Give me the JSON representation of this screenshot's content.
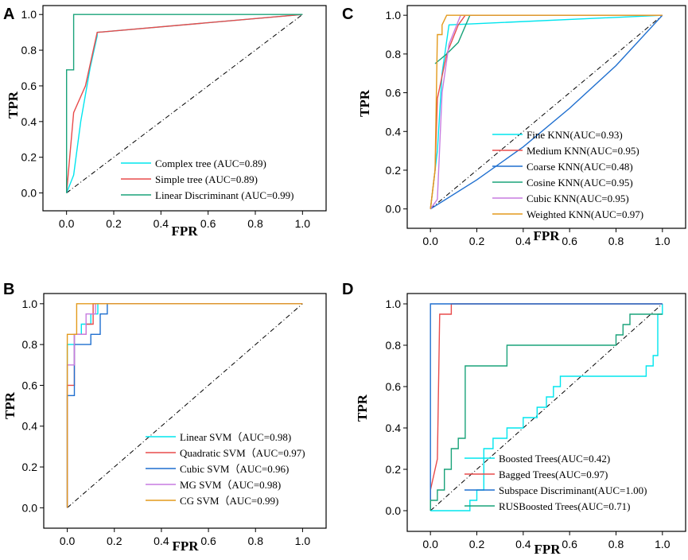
{
  "chart_data": [
    {
      "panel": "A",
      "type": "line",
      "xlabel": "FPR",
      "ylabel": "TPR",
      "xlim": [
        -0.1,
        1.1
      ],
      "ylim": [
        -0.1,
        1.05
      ],
      "xticks": [
        0.0,
        0.2,
        0.4,
        0.6,
        0.8,
        1.0
      ],
      "yticks": [
        0.0,
        0.2,
        0.4,
        0.6,
        0.8,
        1.0
      ],
      "xtick_labels": [
        "0.0",
        "0.2",
        "0.4",
        "0.6",
        "0.8",
        "1.0"
      ],
      "ytick_labels": [
        "0.0",
        "0.2",
        "0.4",
        "0.6",
        "0.8",
        "1.0"
      ],
      "legend_position": "bottom-right",
      "series": [
        {
          "name": "Complex tree (AUC=0.89)",
          "color": "#00e5ee",
          "points": [
            [
              0,
              0
            ],
            [
              0.03,
              0.1
            ],
            [
              0.06,
              0.4
            ],
            [
              0.1,
              0.7
            ],
            [
              0.13,
              0.88
            ],
            [
              0.13,
              0.9
            ],
            [
              1,
              1
            ]
          ]
        },
        {
          "name": "Simple tree (AUC=0.89)",
          "color": "#e84b4b",
          "points": [
            [
              0,
              0
            ],
            [
              0.03,
              0.45
            ],
            [
              0.08,
              0.6
            ],
            [
              0.13,
              0.9
            ],
            [
              1,
              1
            ]
          ]
        },
        {
          "name": "Linear Discriminant (AUC=0.99)",
          "color": "#1aa37a",
          "points": [
            [
              0,
              0
            ],
            [
              0,
              0.69
            ],
            [
              0.03,
              0.69
            ],
            [
              0.03,
              1
            ],
            [
              1,
              1
            ]
          ]
        }
      ]
    },
    {
      "panel": "B",
      "type": "line",
      "xlabel": "FPR",
      "ylabel": "TPR",
      "xlim": [
        -0.1,
        1.1
      ],
      "ylim": [
        -0.1,
        1.05
      ],
      "xticks": [
        0.0,
        0.2,
        0.4,
        0.6,
        0.8,
        1.0
      ],
      "yticks": [
        0.0,
        0.2,
        0.4,
        0.6,
        0.8,
        1.0
      ],
      "xtick_labels": [
        "0.0",
        "0.2",
        "0.4",
        "0.6",
        "0.8",
        "1.0"
      ],
      "ytick_labels": [
        "0.0",
        "0.2",
        "0.4",
        "0.6",
        "0.8",
        "1.0"
      ],
      "legend_position": "bottom-right",
      "series": [
        {
          "name": "Linear SVM（AUC=0.98)",
          "color": "#00e5ee",
          "points": [
            [
              0,
              0
            ],
            [
              0,
              0.8
            ],
            [
              0.03,
              0.8
            ],
            [
              0.03,
              0.85
            ],
            [
              0.06,
              0.85
            ],
            [
              0.06,
              0.9
            ],
            [
              0.1,
              0.9
            ],
            [
              0.1,
              0.95
            ],
            [
              0.13,
              0.95
            ],
            [
              0.13,
              1
            ],
            [
              1,
              1
            ]
          ]
        },
        {
          "name": "Quadratic SVM（AUC=0.97)",
          "color": "#e84b4b",
          "points": [
            [
              0,
              0
            ],
            [
              0,
              0.6
            ],
            [
              0.03,
              0.6
            ],
            [
              0.03,
              0.85
            ],
            [
              0.08,
              0.85
            ],
            [
              0.08,
              0.9
            ],
            [
              0.11,
              0.9
            ],
            [
              0.11,
              1
            ],
            [
              1,
              1
            ]
          ]
        },
        {
          "name": "Cubic SVM（AUC=0.96)",
          "color": "#1f6fcf",
          "points": [
            [
              0,
              0
            ],
            [
              0,
              0.55
            ],
            [
              0.03,
              0.55
            ],
            [
              0.03,
              0.8
            ],
            [
              0.1,
              0.8
            ],
            [
              0.1,
              0.85
            ],
            [
              0.14,
              0.85
            ],
            [
              0.14,
              0.95
            ],
            [
              0.17,
              0.95
            ],
            [
              0.17,
              1
            ],
            [
              1,
              1
            ]
          ]
        },
        {
          "name": "MG SVM（AUC=0.98)",
          "color": "#c77ce0",
          "points": [
            [
              0,
              0
            ],
            [
              0,
              0.7
            ],
            [
              0.03,
              0.7
            ],
            [
              0.03,
              0.85
            ],
            [
              0.08,
              0.85
            ],
            [
              0.08,
              0.95
            ],
            [
              0.12,
              0.95
            ],
            [
              0.12,
              1
            ],
            [
              1,
              1
            ]
          ]
        },
        {
          "name": "CG SVM（AUC=0.99)",
          "color": "#e39a1c",
          "points": [
            [
              0,
              0
            ],
            [
              0,
              0.85
            ],
            [
              0.04,
              0.85
            ],
            [
              0.04,
              1
            ],
            [
              1,
              1
            ]
          ]
        }
      ]
    },
    {
      "panel": "C",
      "type": "line",
      "xlabel": "FPR",
      "ylabel": "TPR",
      "xlim": [
        -0.1,
        1.1
      ],
      "ylim": [
        -0.1,
        1.05
      ],
      "xticks": [
        0.0,
        0.2,
        0.4,
        0.6,
        0.8,
        1.0
      ],
      "yticks": [
        0.0,
        0.2,
        0.4,
        0.6,
        0.8,
        1.0
      ],
      "xtick_labels": [
        "0.0",
        "0.2",
        "0.4",
        "0.6",
        "0.8",
        "1.0"
      ],
      "ytick_labels": [
        "0.0",
        "0.2",
        "0.4",
        "0.6",
        "0.8",
        "1.0"
      ],
      "legend_position": "bottom-right",
      "series": [
        {
          "name": "Fine KNN(AUC=0.93)",
          "color": "#00e5ee",
          "points": [
            [
              0,
              0
            ],
            [
              0.03,
              0.3
            ],
            [
              0.05,
              0.7
            ],
            [
              0.08,
              0.95
            ],
            [
              1,
              1
            ]
          ]
        },
        {
          "name": "Medium KNN(AUC=0.95)",
          "color": "#e84b4b",
          "points": [
            [
              0,
              0
            ],
            [
              0.02,
              0.2
            ],
            [
              0.03,
              0.57
            ],
            [
              0.07,
              0.8
            ],
            [
              0.12,
              0.95
            ],
            [
              0.15,
              1
            ],
            [
              1,
              1
            ]
          ]
        },
        {
          "name": "Coarse KNN(AUC=0.48)",
          "color": "#1f6fcf",
          "points": [
            [
              0,
              0
            ],
            [
              0.2,
              0.15
            ],
            [
              0.4,
              0.32
            ],
            [
              0.6,
              0.52
            ],
            [
              0.8,
              0.74
            ],
            [
              1,
              1
            ]
          ]
        },
        {
          "name": "Cosine KNN(AUC=0.95)",
          "color": "#1aa37a",
          "points": [
            [
              0.02,
              0.75
            ],
            [
              0.07,
              0.8
            ],
            [
              0.12,
              0.86
            ],
            [
              0.17,
              1
            ],
            [
              1,
              1
            ]
          ]
        },
        {
          "name": "Cubic KNN(AUC=0.95)",
          "color": "#c77ce0",
          "points": [
            [
              0,
              0
            ],
            [
              0.03,
              0.05
            ],
            [
              0.05,
              0.6
            ],
            [
              0.08,
              0.85
            ],
            [
              0.13,
              1
            ],
            [
              1,
              1
            ]
          ]
        },
        {
          "name": "Weighted KNN(AUC=0.97)",
          "color": "#e39a1c",
          "points": [
            [
              0,
              0
            ],
            [
              0.02,
              0.2
            ],
            [
              0.03,
              0.9
            ],
            [
              0.05,
              0.9
            ],
            [
              0.05,
              0.95
            ],
            [
              0.07,
              1
            ],
            [
              1,
              1
            ]
          ]
        }
      ]
    },
    {
      "panel": "D",
      "type": "line",
      "xlabel": "FPR",
      "ylabel": "TPR",
      "xlim": [
        -0.1,
        1.1
      ],
      "ylim": [
        -0.1,
        1.05
      ],
      "xticks": [
        0.0,
        0.2,
        0.4,
        0.6,
        0.8,
        1.0
      ],
      "yticks": [
        0.0,
        0.2,
        0.4,
        0.6,
        0.8,
        1.0
      ],
      "xtick_labels": [
        "0.0",
        "0.2",
        "0.4",
        "0.6",
        "0.8",
        "1.0"
      ],
      "ytick_labels": [
        "0.0",
        "0.2",
        "0.4",
        "0.6",
        "0.8",
        "1.0"
      ],
      "legend_position": "bottom-right",
      "series": [
        {
          "name": "Boosted Trees(AUC=0.42)",
          "color": "#00e5ee",
          "points": [
            [
              0,
              0
            ],
            [
              0.17,
              0
            ],
            [
              0.17,
              0.05
            ],
            [
              0.2,
              0.05
            ],
            [
              0.2,
              0.1
            ],
            [
              0.23,
              0.1
            ],
            [
              0.23,
              0.3
            ],
            [
              0.27,
              0.3
            ],
            [
              0.27,
              0.35
            ],
            [
              0.33,
              0.35
            ],
            [
              0.33,
              0.4
            ],
            [
              0.4,
              0.4
            ],
            [
              0.4,
              0.45
            ],
            [
              0.46,
              0.45
            ],
            [
              0.46,
              0.5
            ],
            [
              0.5,
              0.5
            ],
            [
              0.5,
              0.55
            ],
            [
              0.53,
              0.55
            ],
            [
              0.53,
              0.6
            ],
            [
              0.56,
              0.6
            ],
            [
              0.56,
              0.65
            ],
            [
              0.93,
              0.65
            ],
            [
              0.93,
              0.7
            ],
            [
              0.96,
              0.7
            ],
            [
              0.96,
              0.75
            ],
            [
              0.98,
              0.75
            ],
            [
              0.98,
              0.95
            ],
            [
              1,
              0.95
            ],
            [
              1,
              1
            ]
          ]
        },
        {
          "name": "Bagged Trees(AUC=0.97)",
          "color": "#e84b4b",
          "points": [
            [
              0,
              0
            ],
            [
              0,
              0.1
            ],
            [
              0.03,
              0.25
            ],
            [
              0.04,
              0.95
            ],
            [
              0.09,
              0.95
            ],
            [
              0.09,
              1
            ],
            [
              1,
              1
            ]
          ]
        },
        {
          "name": "Subspace Discriminant(AUC=1.00)",
          "color": "#1f6fcf",
          "points": [
            [
              0,
              0
            ],
            [
              0,
              1
            ],
            [
              1,
              1
            ]
          ]
        },
        {
          "name": "RUSBoosted Trees(AUC=0.71)",
          "color": "#1aa37a",
          "points": [
            [
              0,
              0
            ],
            [
              0,
              0.05
            ],
            [
              0.03,
              0.05
            ],
            [
              0.03,
              0.1
            ],
            [
              0.06,
              0.1
            ],
            [
              0.06,
              0.2
            ],
            [
              0.09,
              0.2
            ],
            [
              0.09,
              0.3
            ],
            [
              0.12,
              0.3
            ],
            [
              0.12,
              0.35
            ],
            [
              0.15,
              0.35
            ],
            [
              0.15,
              0.7
            ],
            [
              0.33,
              0.7
            ],
            [
              0.33,
              0.8
            ],
            [
              0.8,
              0.8
            ],
            [
              0.8,
              0.85
            ],
            [
              0.83,
              0.85
            ],
            [
              0.83,
              0.9
            ],
            [
              0.86,
              0.9
            ],
            [
              0.86,
              0.95
            ],
            [
              1,
              0.95
            ]
          ]
        }
      ]
    }
  ]
}
